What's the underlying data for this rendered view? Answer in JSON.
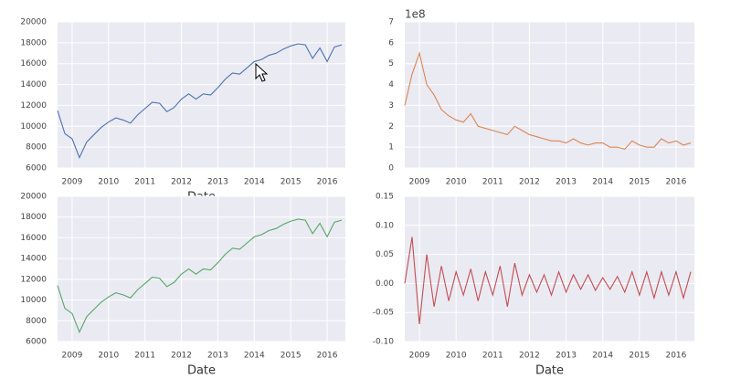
{
  "chart_data": [
    {
      "type": "line",
      "color": "#4c72b0",
      "xlabel": "Date",
      "x": [
        2008.6,
        2008.8,
        2009.0,
        2009.2,
        2009.4,
        2009.6,
        2009.8,
        2010.0,
        2010.2,
        2010.4,
        2010.6,
        2010.8,
        2011.0,
        2011.2,
        2011.4,
        2011.6,
        2011.8,
        2012.0,
        2012.2,
        2012.4,
        2012.6,
        2012.8,
        2013.0,
        2013.2,
        2013.4,
        2013.6,
        2013.8,
        2014.0,
        2014.2,
        2014.4,
        2014.6,
        2014.8,
        2015.0,
        2015.2,
        2015.4,
        2015.6,
        2015.8,
        2016.0,
        2016.2,
        2016.4
      ],
      "values": [
        11500,
        9300,
        8800,
        7000,
        8500,
        9200,
        9900,
        10400,
        10800,
        10600,
        10300,
        11100,
        11700,
        12300,
        12200,
        11400,
        11800,
        12600,
        13100,
        12600,
        13100,
        13000,
        13700,
        14500,
        15100,
        15000,
        15600,
        16200,
        16400,
        16800,
        17000,
        17400,
        17700,
        17900,
        17800,
        16500,
        17500,
        16200,
        17600,
        17800
      ],
      "xlim": [
        2008.6,
        2016.5
      ],
      "xticks": [
        2009,
        2010,
        2011,
        2012,
        2013,
        2014,
        2015,
        2016
      ],
      "ylim": [
        6000,
        20000
      ],
      "yticks": [
        6000,
        8000,
        10000,
        12000,
        14000,
        16000,
        18000,
        20000
      ],
      "grid": true
    },
    {
      "type": "line",
      "color": "#dd8452",
      "offset_label": "1e8",
      "x": [
        2008.6,
        2008.8,
        2009.0,
        2009.2,
        2009.4,
        2009.6,
        2009.8,
        2010.0,
        2010.2,
        2010.4,
        2010.6,
        2010.8,
        2011.0,
        2011.2,
        2011.4,
        2011.6,
        2011.8,
        2012.0,
        2012.2,
        2012.4,
        2012.6,
        2012.8,
        2013.0,
        2013.2,
        2013.4,
        2013.6,
        2013.8,
        2014.0,
        2014.2,
        2014.4,
        2014.6,
        2014.8,
        2015.0,
        2015.2,
        2015.4,
        2015.6,
        2015.8,
        2016.0,
        2016.2,
        2016.4
      ],
      "values": [
        3.0,
        4.5,
        5.5,
        4.0,
        3.5,
        2.8,
        2.5,
        2.3,
        2.2,
        2.6,
        2.0,
        1.9,
        1.8,
        1.7,
        1.6,
        2.0,
        1.8,
        1.6,
        1.5,
        1.4,
        1.3,
        1.3,
        1.2,
        1.4,
        1.2,
        1.1,
        1.2,
        1.2,
        1.0,
        1.0,
        0.9,
        1.3,
        1.1,
        1.0,
        1.0,
        1.4,
        1.2,
        1.3,
        1.1,
        1.2
      ],
      "xlim": [
        2008.6,
        2016.5
      ],
      "xticks": [
        2009,
        2010,
        2011,
        2012,
        2013,
        2014,
        2015,
        2016
      ],
      "ylim": [
        0,
        7
      ],
      "yticks": [
        0,
        1,
        2,
        3,
        4,
        5,
        6,
        7
      ],
      "grid": true
    },
    {
      "type": "line",
      "color": "#55a868",
      "xlabel": "Date",
      "x": [
        2008.6,
        2008.8,
        2009.0,
        2009.2,
        2009.4,
        2009.6,
        2009.8,
        2010.0,
        2010.2,
        2010.4,
        2010.6,
        2010.8,
        2011.0,
        2011.2,
        2011.4,
        2011.6,
        2011.8,
        2012.0,
        2012.2,
        2012.4,
        2012.6,
        2012.8,
        2013.0,
        2013.2,
        2013.4,
        2013.6,
        2013.8,
        2014.0,
        2014.2,
        2014.4,
        2014.6,
        2014.8,
        2015.0,
        2015.2,
        2015.4,
        2015.6,
        2015.8,
        2016.0,
        2016.2,
        2016.4
      ],
      "values": [
        11400,
        9200,
        8700,
        6900,
        8400,
        9100,
        9800,
        10300,
        10700,
        10500,
        10200,
        11000,
        11600,
        12200,
        12100,
        11300,
        11700,
        12500,
        13000,
        12500,
        13000,
        12900,
        13600,
        14400,
        15000,
        14900,
        15500,
        16100,
        16300,
        16700,
        16900,
        17300,
        17600,
        17800,
        17700,
        16400,
        17400,
        16100,
        17500,
        17700
      ],
      "xlim": [
        2008.6,
        2016.5
      ],
      "xticks": [
        2009,
        2010,
        2011,
        2012,
        2013,
        2014,
        2015,
        2016
      ],
      "ylim": [
        6000,
        20000
      ],
      "yticks": [
        6000,
        8000,
        10000,
        12000,
        14000,
        16000,
        18000,
        20000
      ],
      "grid": true
    },
    {
      "type": "line",
      "color": "#c44e52",
      "xlabel": "Date",
      "x": [
        2008.6,
        2008.8,
        2009.0,
        2009.2,
        2009.4,
        2009.6,
        2009.8,
        2010.0,
        2010.2,
        2010.4,
        2010.6,
        2010.8,
        2011.0,
        2011.2,
        2011.4,
        2011.6,
        2011.8,
        2012.0,
        2012.2,
        2012.4,
        2012.6,
        2012.8,
        2013.0,
        2013.2,
        2013.4,
        2013.6,
        2013.8,
        2014.0,
        2014.2,
        2014.4,
        2014.6,
        2014.8,
        2015.0,
        2015.2,
        2015.4,
        2015.6,
        2015.8,
        2016.0,
        2016.2,
        2016.4
      ],
      "values": [
        0.0,
        0.08,
        -0.07,
        0.05,
        -0.04,
        0.03,
        -0.03,
        0.02,
        -0.02,
        0.025,
        -0.03,
        0.02,
        -0.02,
        0.03,
        -0.04,
        0.035,
        -0.02,
        0.015,
        -0.015,
        0.015,
        -0.02,
        0.02,
        -0.015,
        0.015,
        -0.01,
        0.015,
        -0.012,
        0.01,
        -0.01,
        0.012,
        -0.015,
        0.02,
        -0.02,
        0.02,
        -0.025,
        0.02,
        -0.02,
        0.02,
        -0.025,
        0.02
      ],
      "xlim": [
        2008.6,
        2016.5
      ],
      "xticks": [
        2009,
        2010,
        2011,
        2012,
        2013,
        2014,
        2015,
        2016
      ],
      "ylim": [
        -0.1,
        0.15
      ],
      "yticks": [
        {
          "value": -0.1,
          "label": "-0.10"
        },
        -0.05,
        {
          "value": 0,
          "label": "0.00"
        },
        0.05,
        {
          "value": 0.1,
          "label": "0.10"
        },
        0.15
      ],
      "grid": true
    }
  ]
}
